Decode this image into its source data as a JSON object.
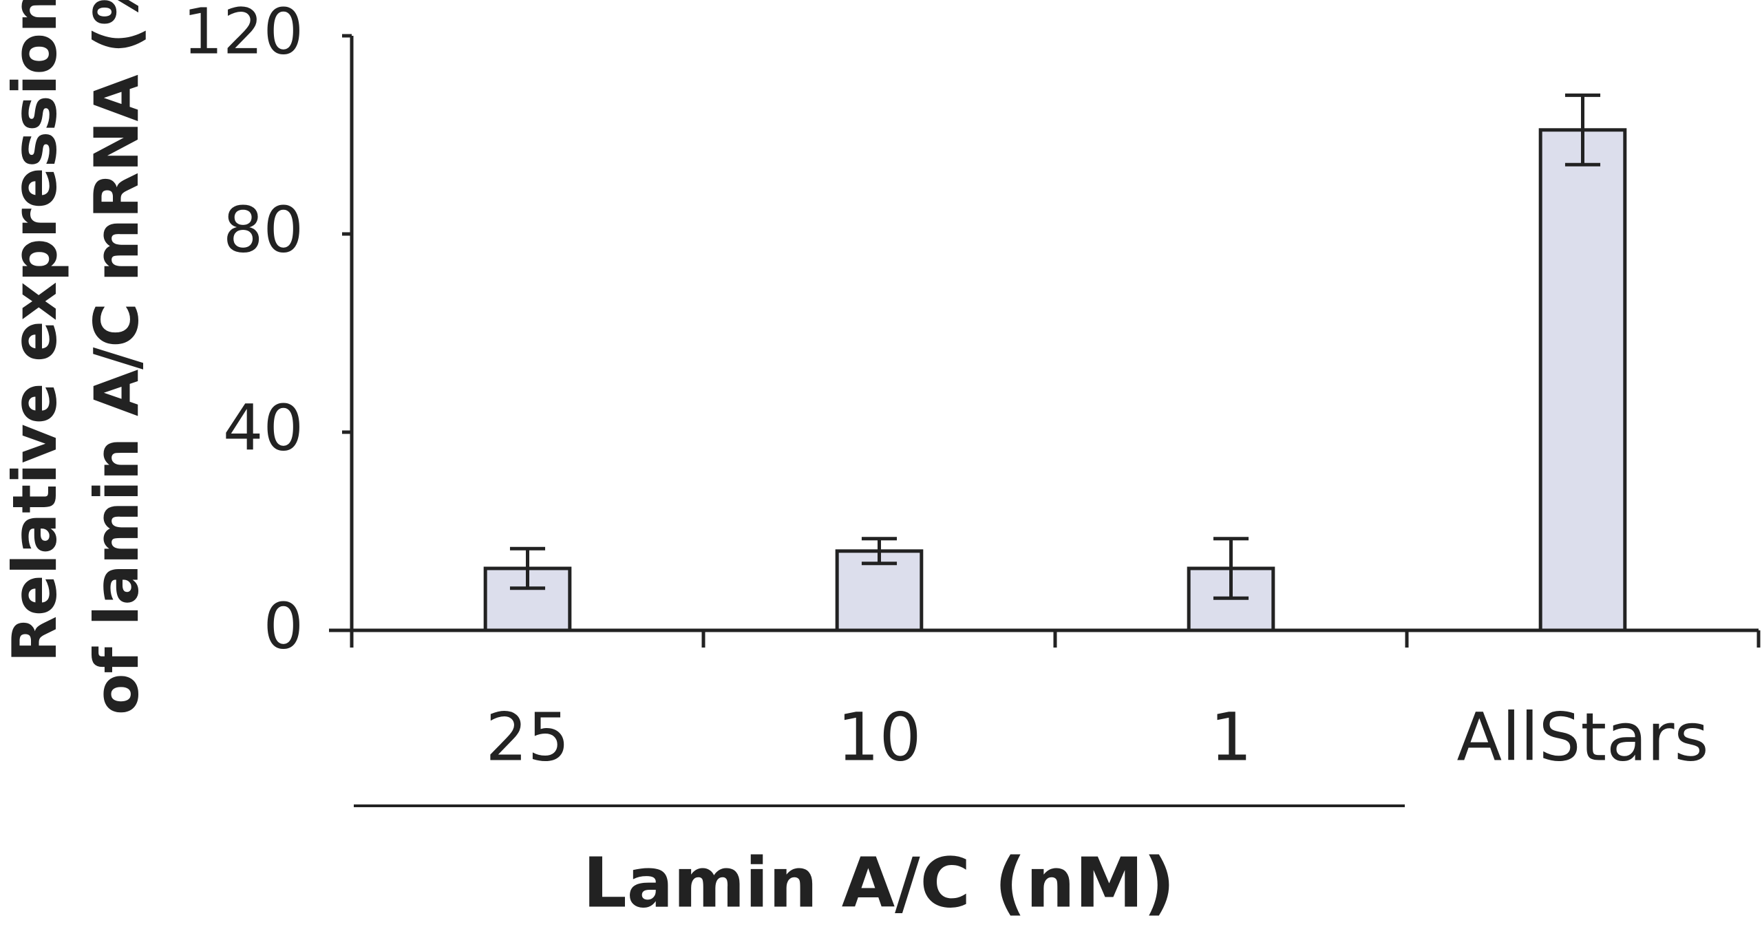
{
  "chart_data": {
    "type": "bar",
    "ylabel": [
      "Relative expression",
      "of lamin A/C mRNA (%)"
    ],
    "categories": [
      "25",
      "10",
      "1",
      "AllStars"
    ],
    "values": [
      12.5,
      16,
      12.5,
      101
    ],
    "errors": [
      4,
      2.5,
      6,
      7
    ],
    "group_label": "Lamin A/C (nM)",
    "color": "#dcdeec",
    "ylim": [
      0,
      120
    ],
    "yticks": [
      0,
      40,
      80,
      120
    ]
  }
}
